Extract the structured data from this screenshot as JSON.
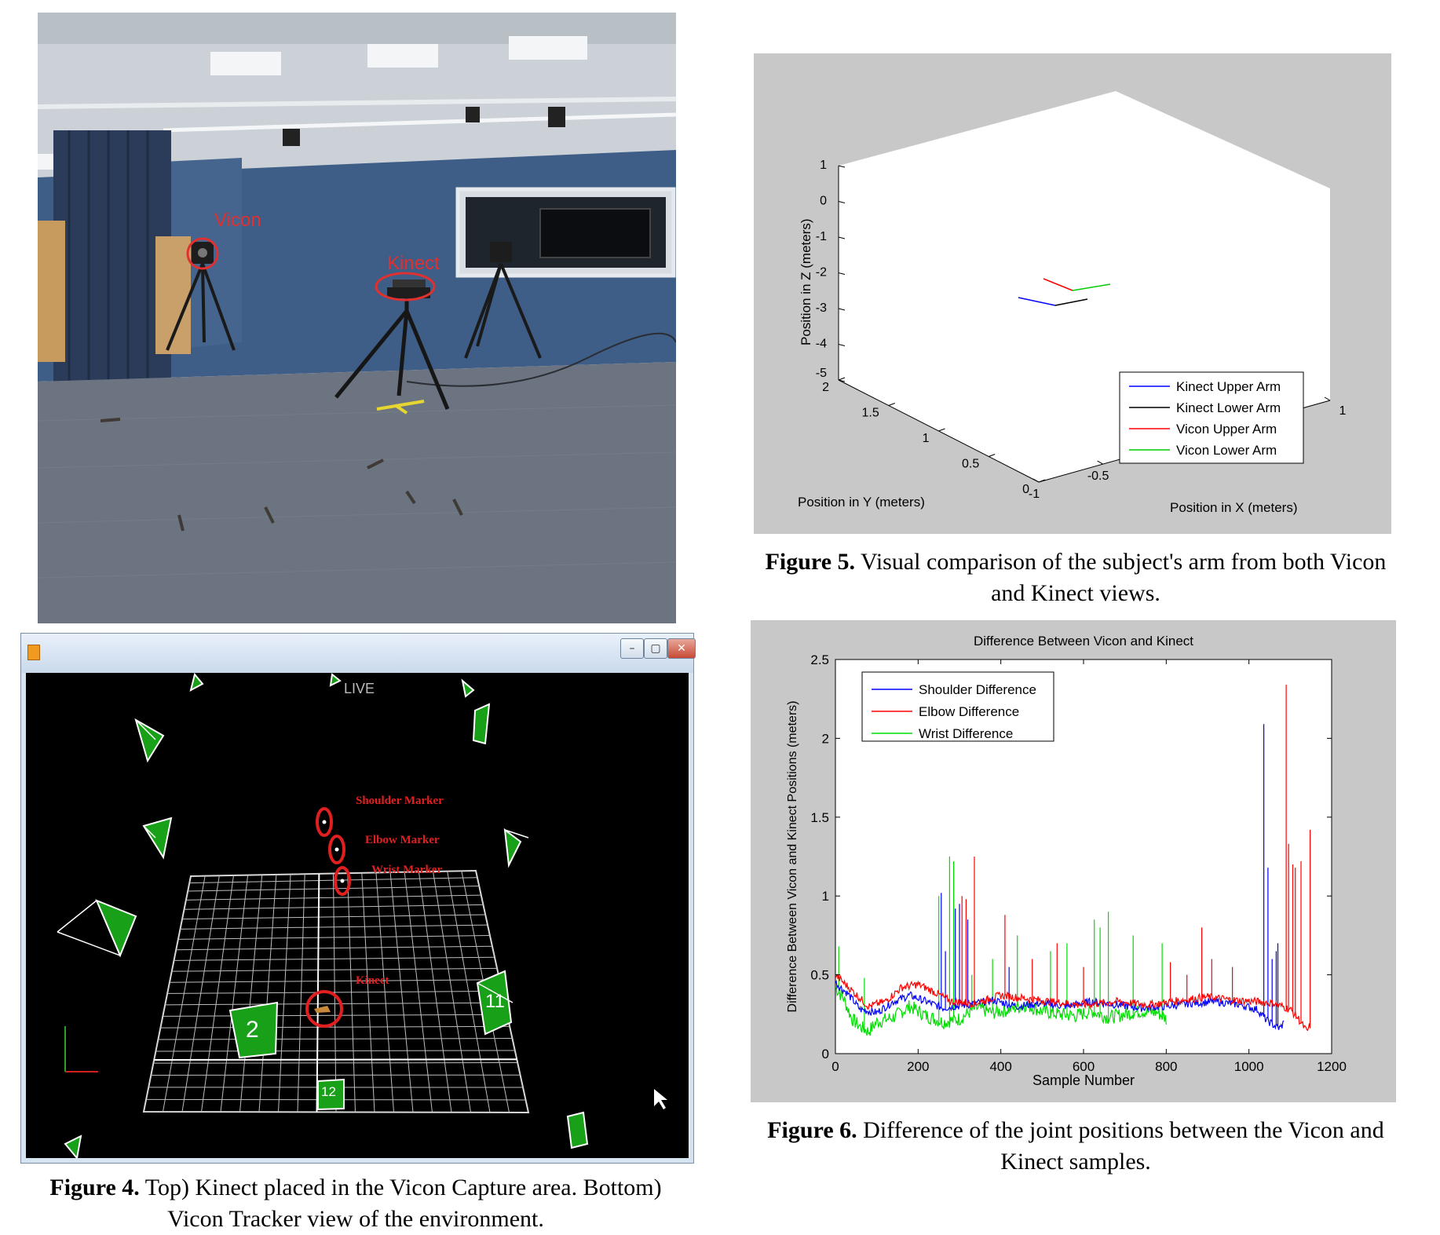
{
  "photo": {
    "labels": {
      "vicon": "Vicon",
      "kinect": "Kinect"
    },
    "colors": {
      "wall": "#3f5d86",
      "carpet": "#6e7683",
      "ceiling": "#cfd4d8",
      "curtain": "#2e3f5c",
      "annotation": "#e03030"
    }
  },
  "vicon_window": {
    "live_label": "LIVE",
    "marker_labels": {
      "shoulder": "Shoulder Marker",
      "elbow": "Elbow Marker",
      "wrist": "Wrist Marker",
      "kinect": "Kinect"
    },
    "camera_numbers": [
      "2",
      "11",
      "12"
    ],
    "buttons": {
      "minimize": "–",
      "maximize": "▢",
      "close": "✕"
    },
    "icons": [
      "app-icon",
      "cursor-icon",
      "camera-icon",
      "axes-icon"
    ]
  },
  "captions": {
    "fig4": {
      "label": "Figure 4.",
      "text1": " Top) Kinect placed in the Vicon Capture area. Bottom)",
      "text2": "Vicon Tracker view of the environment."
    },
    "fig5": {
      "label": "Figure 5.",
      "text1": " Visual comparison of the subject's arm from both Vicon",
      "text2": "and Kinect views."
    },
    "fig6": {
      "label": "Figure 6.",
      "text1": " Difference of the joint positions between the Vicon and",
      "text2": "Kinect samples."
    }
  },
  "chart_data": [
    {
      "type": "line",
      "chart_id": "fig5",
      "title": "",
      "xlabel": "Position in X (meters)",
      "ylabel": "Position in Y (meters)",
      "zlabel": "Position in Z (meters)",
      "z_ticks": [
        "1",
        "0",
        "-1",
        "-2",
        "-3",
        "-4",
        "-5"
      ],
      "y_ticks": [
        "2",
        "1.5",
        "1",
        "0.5",
        "0"
      ],
      "x_ticks": [
        "-1",
        "-0.5",
        "1"
      ],
      "zlim": [
        -5,
        1
      ],
      "ylim": [
        0,
        2
      ],
      "xlim": [
        -1,
        1
      ],
      "legend_position": "bottom-right",
      "series": [
        {
          "name": "Kinect Upper Arm",
          "color": "#0000ff"
        },
        {
          "name": "Kinect Lower Arm",
          "color": "#000000"
        },
        {
          "name": "Vicon Upper Arm",
          "color": "#ff0000"
        },
        {
          "name": "Vicon Lower Arm",
          "color": "#00cc00"
        }
      ]
    },
    {
      "type": "line",
      "chart_id": "fig6",
      "title": "Difference Between Vicon and Kinect",
      "xlabel": "Sample Number",
      "ylabel": "Difference Between Vicon and Kinect Positions (meters)",
      "xlim": [
        0,
        1200
      ],
      "ylim": [
        0,
        2.5
      ],
      "x_ticks": [
        0,
        200,
        400,
        600,
        800,
        1000,
        1200
      ],
      "y_ticks": [
        0,
        0.5,
        1,
        1.5,
        2,
        2.5
      ],
      "legend_position": "top-left",
      "series": [
        {
          "name": "Shoulder Difference",
          "color": "#0000ff",
          "baseline": [
            [
              0,
              0.45
            ],
            [
              30,
              0.38
            ],
            [
              60,
              0.28
            ],
            [
              100,
              0.26
            ],
            [
              140,
              0.33
            ],
            [
              180,
              0.37
            ],
            [
              220,
              0.33
            ],
            [
              260,
              0.29
            ],
            [
              320,
              0.31
            ],
            [
              380,
              0.34
            ],
            [
              440,
              0.3
            ],
            [
              500,
              0.32
            ],
            [
              560,
              0.3
            ],
            [
              620,
              0.33
            ],
            [
              680,
              0.31
            ],
            [
              740,
              0.29
            ],
            [
              800,
              0.3
            ],
            [
              860,
              0.32
            ],
            [
              920,
              0.33
            ],
            [
              980,
              0.31
            ],
            [
              1020,
              0.28
            ],
            [
              1040,
              0.22
            ],
            [
              1060,
              0.18
            ],
            [
              1075,
              0.16
            ],
            [
              1085,
              0.2
            ]
          ],
          "spikes": [
            [
              255,
              1.02
            ],
            [
              265,
              0.65
            ],
            [
              290,
              0.92
            ],
            [
              300,
              0.95
            ],
            [
              320,
              0.85
            ],
            [
              420,
              0.55
            ],
            [
              1035,
              2.09
            ],
            [
              1045,
              1.18
            ],
            [
              1055,
              0.6
            ],
            [
              1065,
              0.65
            ],
            [
              1070,
              0.7
            ]
          ]
        },
        {
          "name": "Elbow Difference",
          "color": "#ff0000",
          "baseline": [
            [
              0,
              0.5
            ],
            [
              40,
              0.4
            ],
            [
              80,
              0.3
            ],
            [
              120,
              0.33
            ],
            [
              160,
              0.42
            ],
            [
              200,
              0.44
            ],
            [
              240,
              0.39
            ],
            [
              280,
              0.33
            ],
            [
              340,
              0.32
            ],
            [
              400,
              0.37
            ],
            [
              460,
              0.35
            ],
            [
              520,
              0.33
            ],
            [
              600,
              0.31
            ],
            [
              680,
              0.33
            ],
            [
              760,
              0.31
            ],
            [
              840,
              0.34
            ],
            [
              900,
              0.36
            ],
            [
              960,
              0.34
            ],
            [
              1020,
              0.33
            ],
            [
              1060,
              0.32
            ],
            [
              1080,
              0.3
            ],
            [
              1100,
              0.28
            ],
            [
              1120,
              0.22
            ],
            [
              1140,
              0.14
            ],
            [
              1148,
              0.18
            ]
          ],
          "spikes": [
            [
              305,
              1.0
            ],
            [
              315,
              0.98
            ],
            [
              335,
              1.25
            ],
            [
              410,
              0.88
            ],
            [
              475,
              0.6
            ],
            [
              535,
              0.7
            ],
            [
              600,
              0.55
            ],
            [
              810,
              0.58
            ],
            [
              850,
              0.5
            ],
            [
              885,
              0.8
            ],
            [
              910,
              0.6
            ],
            [
              960,
              0.55
            ],
            [
              1090,
              2.34
            ],
            [
              1095,
              1.33
            ],
            [
              1105,
              1.2
            ],
            [
              1112,
              1.18
            ],
            [
              1125,
              1.22
            ],
            [
              1148,
              1.42
            ]
          ]
        },
        {
          "name": "Wrist Difference",
          "color": "#00dd00",
          "baseline": [
            [
              0,
              0.42
            ],
            [
              20,
              0.35
            ],
            [
              40,
              0.22
            ],
            [
              60,
              0.17
            ],
            [
              80,
              0.14
            ],
            [
              100,
              0.2
            ],
            [
              140,
              0.23
            ],
            [
              180,
              0.3
            ],
            [
              220,
              0.24
            ],
            [
              260,
              0.2
            ],
            [
              300,
              0.22
            ],
            [
              340,
              0.29
            ],
            [
              380,
              0.26
            ],
            [
              420,
              0.28
            ],
            [
              460,
              0.31
            ],
            [
              500,
              0.27
            ],
            [
              540,
              0.25
            ],
            [
              580,
              0.24
            ],
            [
              620,
              0.27
            ],
            [
              660,
              0.23
            ],
            [
              700,
              0.25
            ],
            [
              740,
              0.27
            ],
            [
              780,
              0.26
            ],
            [
              800,
              0.22
            ]
          ],
          "spikes": [
            [
              8,
              0.68
            ],
            [
              70,
              0.48
            ],
            [
              250,
              1.0
            ],
            [
              275,
              1.25
            ],
            [
              285,
              1.22
            ],
            [
              330,
              0.5
            ],
            [
              380,
              0.6
            ],
            [
              440,
              0.75
            ],
            [
              520,
              0.65
            ],
            [
              560,
              0.7
            ],
            [
              625,
              0.85
            ],
            [
              640,
              0.8
            ],
            [
              660,
              0.9
            ],
            [
              720,
              0.75
            ],
            [
              790,
              0.7
            ]
          ]
        }
      ]
    }
  ]
}
